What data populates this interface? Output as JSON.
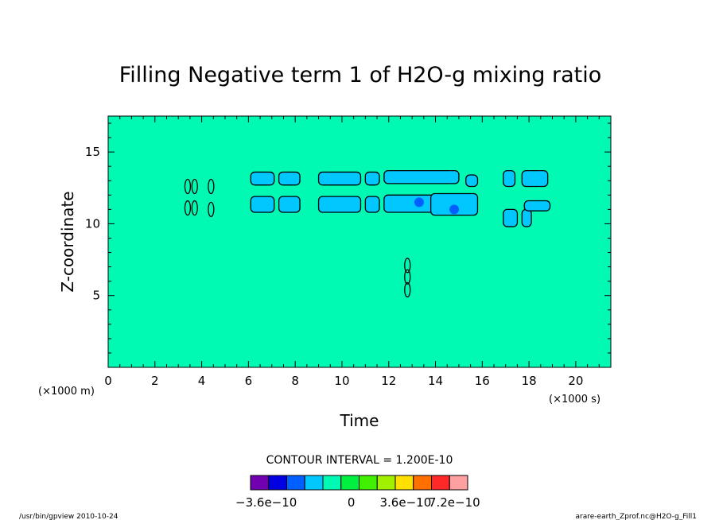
{
  "chart_data": {
    "type": "heatmap",
    "title": "Filling Negative term 1 of H2O-g mixing ratio",
    "xlabel": "Time",
    "ylabel": "Z-coordinate",
    "x_unit": "(×1000 s)",
    "y_unit": "(×1000 m)",
    "xlim": [
      0,
      21.5
    ],
    "ylim": [
      0,
      17.5
    ],
    "x_ticks": [
      0,
      2,
      4,
      6,
      8,
      10,
      12,
      14,
      16,
      18,
      20
    ],
    "y_ticks": [
      5,
      10,
      15
    ],
    "contour_interval_label": "CONTOUR INTERVAL = 1.200E-10",
    "background_color": "#00fab4",
    "colorbar": {
      "colors": [
        "#7000b0",
        "#0000e0",
        "#0060ff",
        "#00c8ff",
        "#00fab4",
        "#00f040",
        "#40f000",
        "#a0f000",
        "#ffe000",
        "#ff7000",
        "#ff2828",
        "#ffa0a0"
      ],
      "tick_labels": [
        "−3.6e−10",
        "0",
        "3.6e−10",
        "7.2e−10"
      ]
    },
    "regions": [
      {
        "x": [
          6.1,
          7.1
        ],
        "y": [
          12.7,
          13.6
        ]
      },
      {
        "x": [
          7.3,
          8.2
        ],
        "y": [
          12.7,
          13.6
        ]
      },
      {
        "x": [
          9.0,
          10.8
        ],
        "y": [
          12.7,
          13.6
        ]
      },
      {
        "x": [
          11.0,
          11.6
        ],
        "y": [
          12.7,
          13.6
        ]
      },
      {
        "x": [
          11.8,
          15.0
        ],
        "y": [
          12.8,
          13.7
        ]
      },
      {
        "x": [
          15.3,
          15.8
        ],
        "y": [
          12.6,
          13.4
        ]
      },
      {
        "x": [
          16.9,
          17.4
        ],
        "y": [
          12.6,
          13.7
        ]
      },
      {
        "x": [
          17.7,
          18.8
        ],
        "y": [
          12.6,
          13.7
        ]
      },
      {
        "x": [
          6.1,
          7.1
        ],
        "y": [
          10.8,
          11.9
        ]
      },
      {
        "x": [
          7.3,
          8.2
        ],
        "y": [
          10.8,
          11.9
        ]
      },
      {
        "x": [
          9.0,
          10.8
        ],
        "y": [
          10.8,
          11.9
        ]
      },
      {
        "x": [
          11.0,
          11.6
        ],
        "y": [
          10.8,
          11.9
        ]
      },
      {
        "x": [
          11.8,
          14.7
        ],
        "y": [
          10.8,
          12.0
        ]
      },
      {
        "x": [
          13.8,
          15.8
        ],
        "y": [
          10.6,
          12.1
        ]
      },
      {
        "x": [
          16.9,
          17.5
        ],
        "y": [
          9.8,
          11.0
        ]
      },
      {
        "x": [
          17.7,
          18.1
        ],
        "y": [
          9.8,
          11.0
        ]
      },
      {
        "x": [
          17.8,
          18.9
        ],
        "y": [
          10.9,
          11.6
        ]
      }
    ],
    "negative_spots": [
      {
        "x": 13.3,
        "y": 11.5
      },
      {
        "x": 14.8,
        "y": 11.0
      }
    ],
    "small_contours": [
      {
        "x": 3.4,
        "y": 12.6
      },
      {
        "x": 3.7,
        "y": 12.6
      },
      {
        "x": 4.4,
        "y": 12.6
      },
      {
        "x": 3.4,
        "y": 11.1
      },
      {
        "x": 3.7,
        "y": 11.1
      },
      {
        "x": 4.4,
        "y": 11.0
      },
      {
        "x": 12.8,
        "y": 7.1
      },
      {
        "x": 12.8,
        "y": 6.3
      },
      {
        "x": 12.8,
        "y": 5.4
      }
    ]
  },
  "footer": {
    "left": "/usr/bin/gpview  2010-10-24",
    "right": "arare-earth_Zprof.nc@H2O-g_Fill1"
  }
}
